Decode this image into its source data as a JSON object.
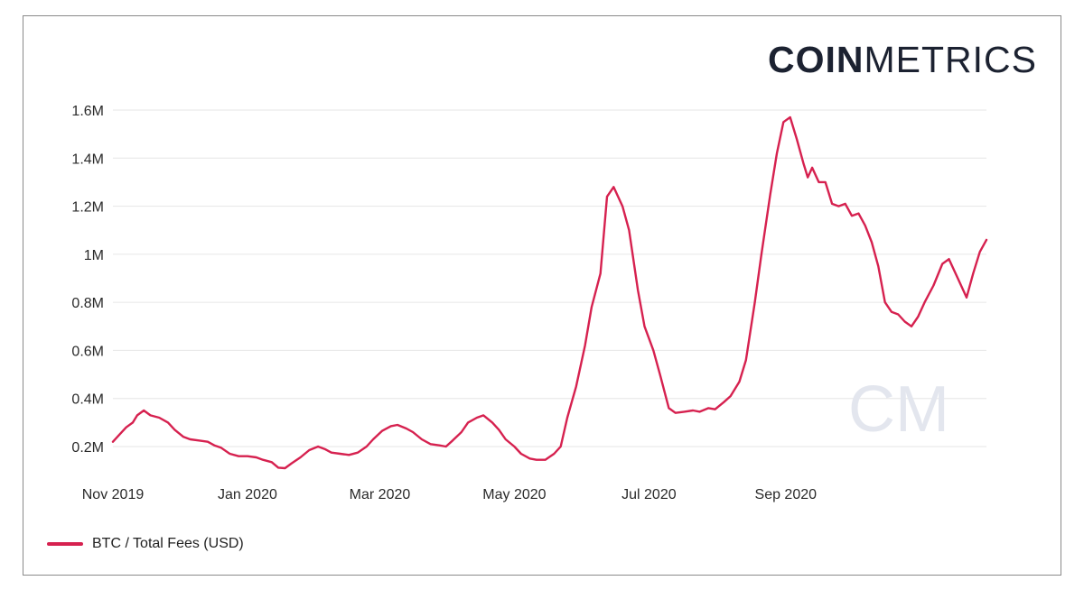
{
  "brand": {
    "bold": "COIN",
    "light": "METRICS",
    "watermark": "CM"
  },
  "colors": {
    "series": "#d6214f",
    "grid": "#e6e6e6",
    "watermark": "#e3e6ee",
    "text": "#2a2a2a"
  },
  "chart_data": {
    "type": "line",
    "title": "",
    "xlabel": "",
    "ylabel": "",
    "x_start": "2019-11-01",
    "x_end": "2020-10-22",
    "x_ticks": [
      {
        "date": "2019-11-01",
        "label": "Nov 2019"
      },
      {
        "date": "2020-01-01",
        "label": "Jan 2020"
      },
      {
        "date": "2020-03-01",
        "label": "Mar 2020"
      },
      {
        "date": "2020-05-01",
        "label": "May 2020"
      },
      {
        "date": "2020-07-01",
        "label": "Jul 2020"
      },
      {
        "date": "2020-09-01",
        "label": "Sep 2020"
      }
    ],
    "y_ticks": [
      {
        "value": 200000,
        "label": "0.2M"
      },
      {
        "value": 400000,
        "label": "0.4M"
      },
      {
        "value": 600000,
        "label": "0.6M"
      },
      {
        "value": 800000,
        "label": "0.8M"
      },
      {
        "value": 1000000,
        "label": "1M"
      },
      {
        "value": 1200000,
        "label": "1.2M"
      },
      {
        "value": 1400000,
        "label": "1.4M"
      },
      {
        "value": 1600000,
        "label": "1.6M"
      }
    ],
    "ylim": [
      200000,
      1600000
    ],
    "grid": true,
    "legend_position": "bottom-left",
    "series": [
      {
        "name": "BTC / Total Fees (USD)",
        "points": [
          [
            "2019-11-01",
            220000
          ],
          [
            "2019-11-04",
            250000
          ],
          [
            "2019-11-07",
            280000
          ],
          [
            "2019-11-10",
            300000
          ],
          [
            "2019-11-12",
            330000
          ],
          [
            "2019-11-15",
            350000
          ],
          [
            "2019-11-18",
            330000
          ],
          [
            "2019-11-22",
            320000
          ],
          [
            "2019-11-26",
            300000
          ],
          [
            "2019-11-29",
            270000
          ],
          [
            "2019-12-03",
            240000
          ],
          [
            "2019-12-06",
            230000
          ],
          [
            "2019-12-10",
            225000
          ],
          [
            "2019-12-14",
            220000
          ],
          [
            "2019-12-17",
            205000
          ],
          [
            "2019-12-20",
            195000
          ],
          [
            "2019-12-24",
            170000
          ],
          [
            "2019-12-28",
            160000
          ],
          [
            "2020-01-01",
            160000
          ],
          [
            "2020-01-05",
            155000
          ],
          [
            "2020-01-08",
            145000
          ],
          [
            "2020-01-12",
            135000
          ],
          [
            "2020-01-15",
            112000
          ],
          [
            "2020-01-18",
            110000
          ],
          [
            "2020-01-21",
            130000
          ],
          [
            "2020-01-25",
            155000
          ],
          [
            "2020-01-29",
            185000
          ],
          [
            "2020-02-02",
            200000
          ],
          [
            "2020-02-05",
            190000
          ],
          [
            "2020-02-08",
            175000
          ],
          [
            "2020-02-12",
            170000
          ],
          [
            "2020-02-16",
            165000
          ],
          [
            "2020-02-20",
            175000
          ],
          [
            "2020-02-24",
            200000
          ],
          [
            "2020-02-27",
            230000
          ],
          [
            "2020-03-02",
            265000
          ],
          [
            "2020-03-06",
            285000
          ],
          [
            "2020-03-09",
            290000
          ],
          [
            "2020-03-13",
            275000
          ],
          [
            "2020-03-16",
            260000
          ],
          [
            "2020-03-20",
            230000
          ],
          [
            "2020-03-24",
            210000
          ],
          [
            "2020-03-28",
            205000
          ],
          [
            "2020-03-31",
            200000
          ],
          [
            "2020-04-03",
            225000
          ],
          [
            "2020-04-07",
            260000
          ],
          [
            "2020-04-10",
            300000
          ],
          [
            "2020-04-14",
            320000
          ],
          [
            "2020-04-17",
            330000
          ],
          [
            "2020-04-21",
            300000
          ],
          [
            "2020-04-24",
            270000
          ],
          [
            "2020-04-27",
            230000
          ],
          [
            "2020-05-01",
            200000
          ],
          [
            "2020-05-04",
            170000
          ],
          [
            "2020-05-08",
            150000
          ],
          [
            "2020-05-11",
            145000
          ],
          [
            "2020-05-15",
            145000
          ],
          [
            "2020-05-19",
            170000
          ],
          [
            "2020-05-22",
            200000
          ],
          [
            "2020-05-25",
            320000
          ],
          [
            "2020-05-29",
            450000
          ],
          [
            "2020-06-02",
            620000
          ],
          [
            "2020-06-05",
            780000
          ],
          [
            "2020-06-09",
            920000
          ],
          [
            "2020-06-12",
            1240000
          ],
          [
            "2020-06-15",
            1280000
          ],
          [
            "2020-06-19",
            1200000
          ],
          [
            "2020-06-22",
            1100000
          ],
          [
            "2020-06-26",
            850000
          ],
          [
            "2020-06-29",
            700000
          ],
          [
            "2020-07-03",
            600000
          ],
          [
            "2020-07-06",
            500000
          ],
          [
            "2020-07-10",
            360000
          ],
          [
            "2020-07-13",
            340000
          ],
          [
            "2020-07-17",
            345000
          ],
          [
            "2020-07-21",
            350000
          ],
          [
            "2020-07-24",
            345000
          ],
          [
            "2020-07-28",
            360000
          ],
          [
            "2020-07-31",
            355000
          ],
          [
            "2020-08-04",
            385000
          ],
          [
            "2020-08-07",
            410000
          ],
          [
            "2020-08-11",
            470000
          ],
          [
            "2020-08-14",
            560000
          ],
          [
            "2020-08-18",
            800000
          ],
          [
            "2020-08-21",
            1000000
          ],
          [
            "2020-08-25",
            1250000
          ],
          [
            "2020-08-28",
            1420000
          ],
          [
            "2020-08-31",
            1550000
          ],
          [
            "2020-09-03",
            1570000
          ],
          [
            "2020-09-06",
            1480000
          ],
          [
            "2020-09-09",
            1380000
          ],
          [
            "2020-09-11",
            1320000
          ],
          [
            "2020-09-13",
            1360000
          ],
          [
            "2020-09-16",
            1300000
          ],
          [
            "2020-09-19",
            1300000
          ],
          [
            "2020-09-22",
            1210000
          ],
          [
            "2020-09-25",
            1200000
          ],
          [
            "2020-09-28",
            1210000
          ],
          [
            "2020-10-01",
            1160000
          ],
          [
            "2020-10-04",
            1170000
          ],
          [
            "2020-10-07",
            1120000
          ],
          [
            "2020-10-10",
            1050000
          ],
          [
            "2020-10-13",
            950000
          ],
          [
            "2020-10-16",
            800000
          ],
          [
            "2020-10-19",
            760000
          ],
          [
            "2020-10-22",
            750000
          ],
          [
            "2020-10-25",
            720000
          ],
          [
            "2020-10-28",
            700000
          ],
          [
            "2020-10-31",
            740000
          ],
          [
            "2020-11-03",
            800000
          ],
          [
            "2020-11-07",
            870000
          ],
          [
            "2020-11-11",
            960000
          ],
          [
            "2020-11-14",
            980000
          ],
          [
            "2020-11-18",
            900000
          ],
          [
            "2020-11-22",
            820000
          ],
          [
            "2020-11-25",
            920000
          ],
          [
            "2020-11-28",
            1010000
          ],
          [
            "2020-12-01",
            1060000
          ]
        ]
      }
    ]
  }
}
